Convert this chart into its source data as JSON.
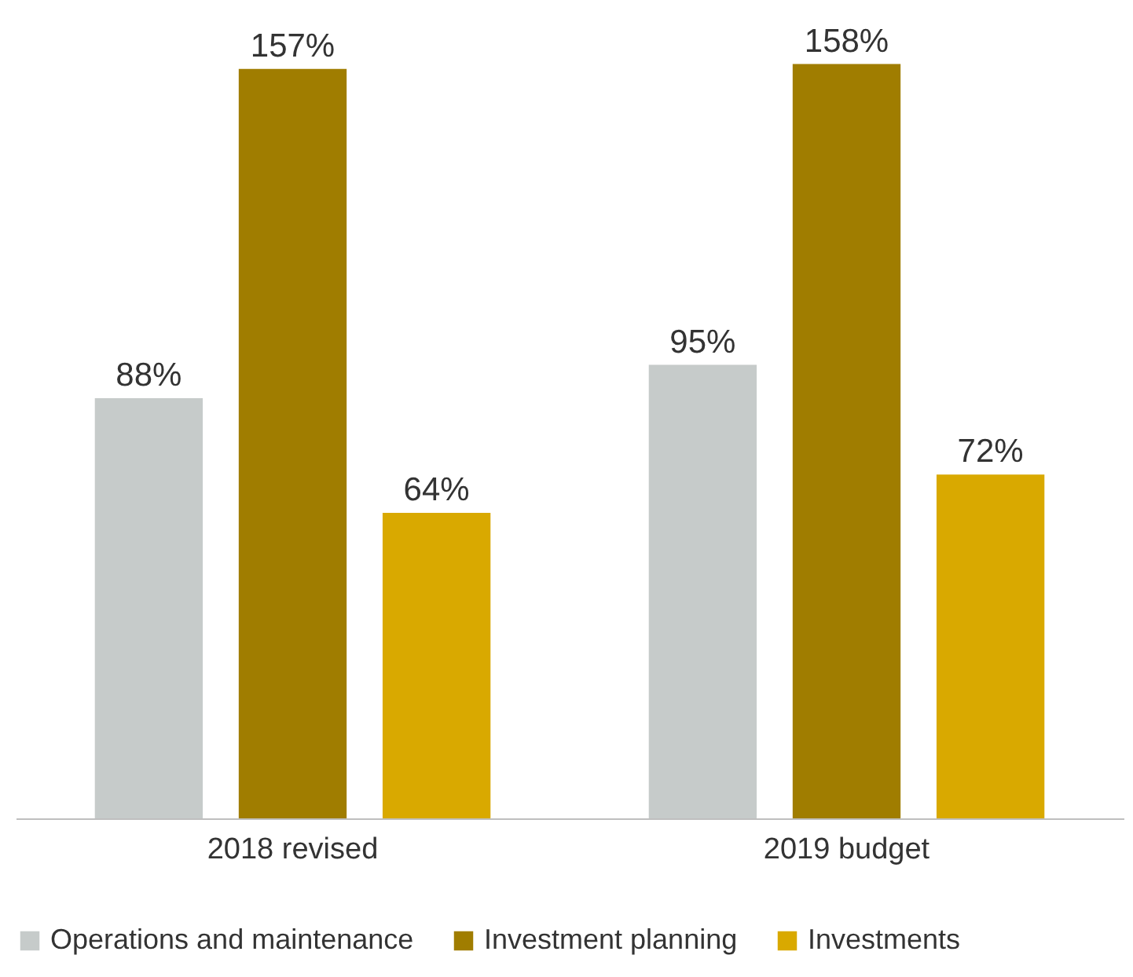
{
  "chart_data": {
    "type": "bar",
    "categories": [
      "2018 revised",
      "2019 budget"
    ],
    "series": [
      {
        "name": "Operations and maintenance",
        "color": "#c6cbca",
        "values": [
          88,
          95
        ],
        "value_labels": [
          "88%",
          "95%"
        ]
      },
      {
        "name": "Investment planning",
        "color": "#a07d00",
        "values": [
          157,
          158
        ],
        "value_labels": [
          "157%",
          "158%"
        ]
      },
      {
        "name": "Investments",
        "color": "#d9a900",
        "values": [
          64,
          72
        ],
        "value_labels": [
          "64%",
          "72%"
        ]
      }
    ],
    "legend": "bottom",
    "grid": false
  }
}
